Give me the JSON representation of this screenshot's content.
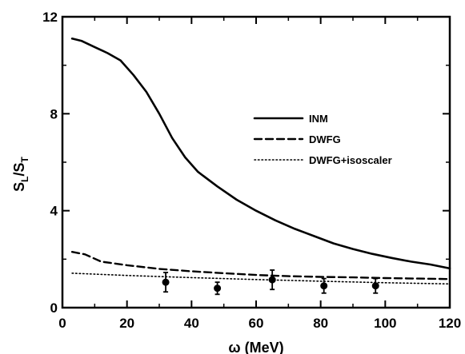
{
  "chart_data": {
    "type": "line",
    "xlabel": "ω (MeV)",
    "ylabel_main": "S",
    "ylabel_sub_1": "L",
    "ylabel_sep": "/S",
    "ylabel_sub_2": "T",
    "xlim": [
      0,
      120
    ],
    "ylim": [
      0,
      12
    ],
    "x_ticks": [
      "0",
      "20",
      "40",
      "60",
      "80",
      "100",
      "120"
    ],
    "y_ticks": [
      "0",
      "4",
      "8",
      "12"
    ],
    "legend_position": "upper-right",
    "grid": false,
    "series": [
      {
        "name": "INM",
        "style": "solid",
        "color": "#000000",
        "x": [
          3,
          6,
          10,
          14,
          18,
          22,
          26,
          30,
          34,
          38,
          42,
          48,
          54,
          60,
          66,
          72,
          78,
          84,
          90,
          96,
          102,
          108,
          114,
          120
        ],
        "y": [
          11.1,
          11.0,
          10.75,
          10.5,
          10.2,
          9.6,
          8.9,
          8.0,
          7.0,
          6.2,
          5.6,
          5.0,
          4.45,
          4.0,
          3.6,
          3.25,
          2.95,
          2.65,
          2.42,
          2.22,
          2.05,
          1.9,
          1.78,
          1.62
        ]
      },
      {
        "name": "DWFG",
        "style": "dashed",
        "color": "#000000",
        "x": [
          3,
          7,
          12,
          20,
          30,
          40,
          50,
          60,
          70,
          80,
          90,
          100,
          110,
          120
        ],
        "y": [
          2.3,
          2.2,
          1.9,
          1.75,
          1.6,
          1.5,
          1.42,
          1.35,
          1.3,
          1.27,
          1.25,
          1.22,
          1.2,
          1.18
        ]
      },
      {
        "name": "DWFG+isoscaler",
        "style": "dotted",
        "color": "#000000",
        "x": [
          3,
          20,
          40,
          60,
          80,
          100,
          120
        ],
        "y": [
          1.42,
          1.33,
          1.24,
          1.16,
          1.09,
          1.03,
          0.98
        ]
      }
    ],
    "data_points": {
      "x": [
        32,
        48,
        65,
        81,
        97
      ],
      "y": [
        1.05,
        0.8,
        1.15,
        0.9,
        0.9
      ],
      "err": [
        0.4,
        0.25,
        0.4,
        0.3,
        0.3
      ]
    }
  }
}
